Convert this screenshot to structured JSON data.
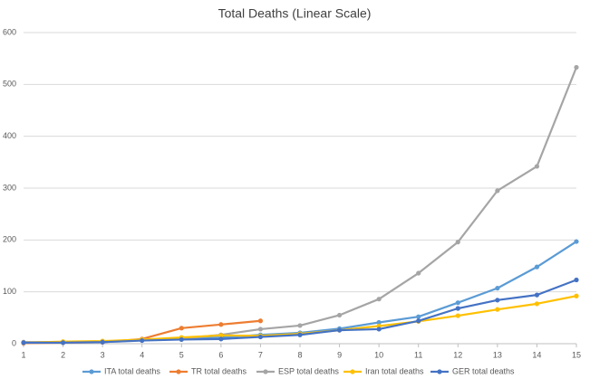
{
  "chart_data": {
    "type": "line",
    "title": "Total Deaths (Linear Scale)",
    "x": [
      1,
      2,
      3,
      4,
      5,
      6,
      7,
      8,
      9,
      10,
      11,
      12,
      13,
      14,
      15
    ],
    "xlim": [
      1,
      15
    ],
    "xticks": [
      1,
      2,
      3,
      4,
      5,
      6,
      7,
      8,
      9,
      10,
      11,
      12,
      13,
      14,
      15
    ],
    "ylim": [
      0,
      600
    ],
    "yticks": [
      0,
      100,
      200,
      300,
      400,
      500,
      600
    ],
    "grid": true,
    "legend": "bottom",
    "series": [
      {
        "name": "ITA total deaths",
        "color": "#5b9bd5",
        "values": [
          2,
          3,
          3,
          7,
          10,
          12,
          17,
          21,
          29,
          41,
          52,
          79,
          107,
          148,
          197
        ]
      },
      {
        "name": "TR total deaths",
        "color": "#ed7d31",
        "values": [
          1,
          2,
          3,
          9,
          30,
          37,
          44,
          null,
          null,
          null,
          null,
          null,
          null,
          null,
          null
        ]
      },
      {
        "name": "ESP total deaths",
        "color": "#a5a5a5",
        "values": [
          3,
          3,
          3,
          8,
          10,
          17,
          28,
          35,
          55,
          86,
          136,
          196,
          295,
          342,
          533
        ]
      },
      {
        "name": "Iran total deaths",
        "color": "#ffc000",
        "values": [
          2,
          4,
          5,
          8,
          12,
          16,
          15,
          19,
          26,
          34,
          43,
          54,
          66,
          77,
          92
        ]
      },
      {
        "name": "GER total deaths",
        "color": "#4472c4",
        "values": [
          2,
          2,
          3,
          6,
          8,
          9,
          13,
          17,
          26,
          28,
          44,
          68,
          84,
          94,
          123
        ]
      }
    ]
  }
}
